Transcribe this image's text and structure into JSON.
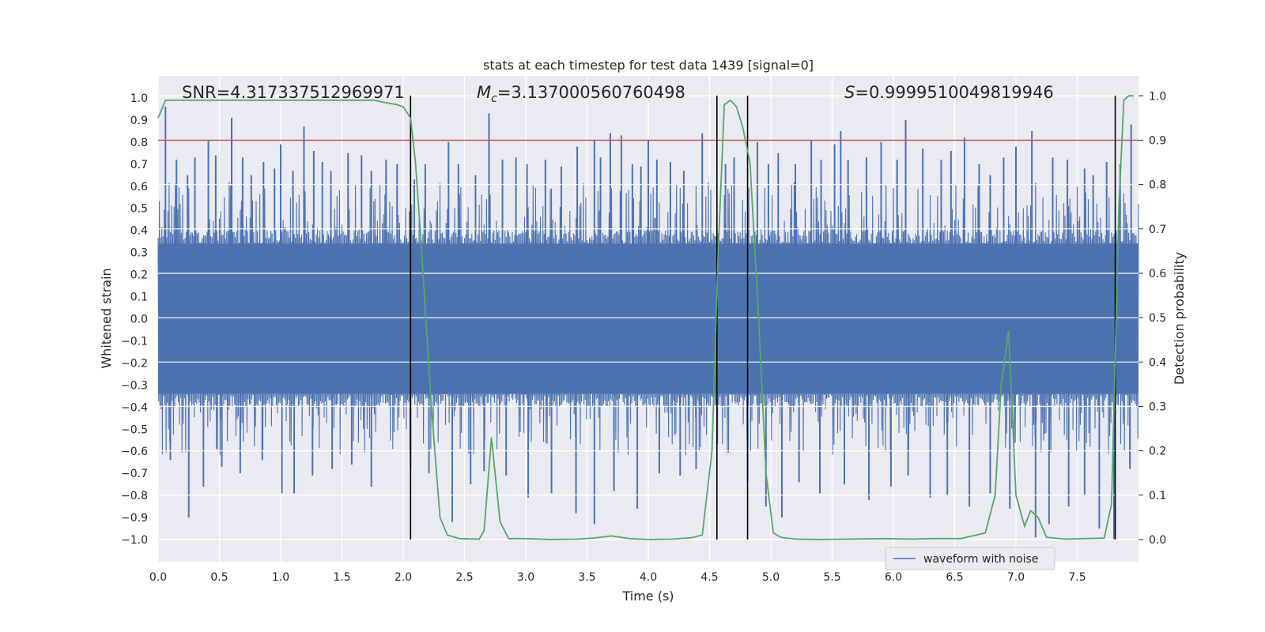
{
  "chart_data": {
    "type": "line",
    "title": "stats at each timestep for test data 1439 [signal=0]",
    "xlabel": "Time (s)",
    "ylabel": "Whitened strain",
    "y2label": "Detection probability",
    "xlim": [
      0.0,
      8.0
    ],
    "ylim": [
      -1.1,
      1.1
    ],
    "y2lim": [
      -0.05,
      1.045
    ],
    "xticks": [
      "0.0",
      "0.5",
      "1.0",
      "1.5",
      "2.0",
      "2.5",
      "3.0",
      "3.5",
      "4.0",
      "4.5",
      "5.0",
      "5.5",
      "6.0",
      "6.5",
      "7.0",
      "7.5"
    ],
    "yticks": [
      "1.0",
      "0.9",
      "0.8",
      "0.7",
      "0.6",
      "0.5",
      "0.4",
      "0.3",
      "0.2",
      "0.1",
      "0.0",
      "−0.1",
      "−0.2",
      "−0.3",
      "−0.4",
      "−0.5",
      "−0.6",
      "−0.7",
      "−0.8",
      "−0.9",
      "−1.0"
    ],
    "y2ticks": [
      "1.0",
      "0.9",
      "0.8",
      "0.7",
      "0.6",
      "0.5",
      "0.4",
      "0.3",
      "0.2",
      "0.1",
      "0.0"
    ],
    "grid": true,
    "annotations": {
      "snr": "SNR=4.317337512969971",
      "mc_symbol": "M",
      "mc_sub": "c",
      "mc_value": "=3.137000560760498",
      "s_symbol": "S",
      "s_value": "=0.9999510049819946"
    },
    "threshold": {
      "axis": "secondary",
      "value": 0.9,
      "color": "#c44e52"
    },
    "vertical_lines": [
      2.06,
      4.56,
      4.81,
      7.81
    ],
    "legend": {
      "label": "waveform with noise",
      "location": "lower-right"
    },
    "series": [
      {
        "name": "waveform with noise",
        "axis": "primary",
        "color": "#4c72b0",
        "noise_band": 0.4,
        "peaks": [
          [
            0.06,
            0.96
          ],
          [
            0.15,
            0.72
          ],
          [
            0.24,
            0.65
          ],
          [
            0.3,
            0.73
          ],
          [
            0.41,
            0.81
          ],
          [
            0.47,
            0.74
          ],
          [
            0.6,
            0.91
          ],
          [
            0.69,
            0.73
          ],
          [
            0.76,
            0.65
          ],
          [
            0.86,
            0.71
          ],
          [
            0.95,
            0.68
          ],
          [
            1.0,
            0.79
          ],
          [
            1.1,
            0.67
          ],
          [
            1.19,
            0.87
          ],
          [
            1.27,
            0.76
          ],
          [
            1.34,
            0.71
          ],
          [
            1.41,
            0.67
          ],
          [
            1.55,
            0.75
          ],
          [
            1.66,
            0.74
          ],
          [
            1.74,
            0.67
          ],
          [
            1.86,
            0.72
          ],
          [
            1.95,
            0.7
          ],
          [
            2.09,
            0.63
          ],
          [
            2.18,
            0.7
          ],
          [
            2.37,
            0.8
          ],
          [
            2.45,
            0.7
          ],
          [
            2.59,
            0.65
          ],
          [
            2.7,
            0.93
          ],
          [
            2.81,
            0.72
          ],
          [
            2.92,
            0.73
          ],
          [
            3.01,
            0.7
          ],
          [
            3.16,
            0.72
          ],
          [
            3.29,
            0.69
          ],
          [
            3.42,
            0.78
          ],
          [
            3.56,
            0.81
          ],
          [
            3.61,
            0.73
          ],
          [
            3.69,
            0.84
          ],
          [
            3.78,
            0.83
          ],
          [
            3.87,
            0.7
          ],
          [
            3.94,
            0.69
          ],
          [
            4.0,
            0.81
          ],
          [
            4.07,
            0.72
          ],
          [
            4.18,
            0.71
          ],
          [
            4.29,
            0.67
          ],
          [
            4.44,
            0.84
          ],
          [
            4.63,
            0.7
          ],
          [
            4.7,
            0.73
          ],
          [
            4.89,
            0.8
          ],
          [
            4.98,
            0.7
          ],
          [
            5.06,
            0.75
          ],
          [
            5.2,
            0.7
          ],
          [
            5.33,
            0.81
          ],
          [
            5.41,
            0.72
          ],
          [
            5.52,
            0.79
          ],
          [
            5.57,
            0.85
          ],
          [
            5.63,
            0.72
          ],
          [
            5.78,
            0.73
          ],
          [
            5.9,
            0.8
          ],
          [
            6.03,
            0.72
          ],
          [
            6.1,
            0.9
          ],
          [
            6.24,
            0.77
          ],
          [
            6.39,
            0.72
          ],
          [
            6.47,
            0.76
          ],
          [
            6.58,
            0.82
          ],
          [
            6.7,
            0.7
          ],
          [
            6.79,
            0.65
          ],
          [
            6.9,
            0.73
          ],
          [
            7.0,
            0.78
          ],
          [
            7.13,
            0.85
          ],
          [
            7.3,
            0.73
          ],
          [
            7.42,
            0.72
          ],
          [
            7.56,
            0.68
          ],
          [
            7.63,
            0.65
          ],
          [
            7.74,
            0.71
          ],
          [
            7.85,
            0.7
          ],
          [
            7.94,
            0.88
          ]
        ],
        "troughs": [
          [
            0.1,
            -0.64
          ],
          [
            0.25,
            -0.9
          ],
          [
            0.37,
            -0.76
          ],
          [
            0.52,
            -0.67
          ],
          [
            0.67,
            -0.7
          ],
          [
            0.85,
            -0.64
          ],
          [
            1.01,
            -0.79
          ],
          [
            1.11,
            -0.79
          ],
          [
            1.26,
            -0.71
          ],
          [
            1.42,
            -0.68
          ],
          [
            1.58,
            -0.66
          ],
          [
            1.74,
            -0.76
          ],
          [
            2.06,
            -0.68
          ],
          [
            2.21,
            -0.7
          ],
          [
            2.4,
            -0.92
          ],
          [
            2.55,
            -0.75
          ],
          [
            2.66,
            -0.69
          ],
          [
            2.84,
            -0.71
          ],
          [
            3.02,
            -0.81
          ],
          [
            3.21,
            -0.79
          ],
          [
            3.41,
            -0.88
          ],
          [
            3.56,
            -0.93
          ],
          [
            3.72,
            -0.78
          ],
          [
            3.91,
            -0.86
          ],
          [
            4.09,
            -0.7
          ],
          [
            4.26,
            -0.71
          ],
          [
            4.39,
            -0.68
          ],
          [
            4.81,
            -0.74
          ],
          [
            4.96,
            -0.85
          ],
          [
            5.09,
            -0.9
          ],
          [
            5.23,
            -0.74
          ],
          [
            5.4,
            -0.79
          ],
          [
            5.6,
            -0.75
          ],
          [
            5.8,
            -0.82
          ],
          [
            5.98,
            -0.76
          ],
          [
            6.12,
            -0.71
          ],
          [
            6.3,
            -0.81
          ],
          [
            6.44,
            -0.8
          ],
          [
            6.62,
            -0.85
          ],
          [
            6.79,
            -0.79
          ],
          [
            6.95,
            -0.86
          ],
          [
            7.16,
            -0.99
          ],
          [
            7.27,
            -0.93
          ],
          [
            7.43,
            -0.85
          ],
          [
            7.56,
            -0.8
          ],
          [
            7.68,
            -0.95
          ],
          [
            7.8,
            -1.0
          ],
          [
            7.93,
            -0.68
          ]
        ]
      },
      {
        "name": "detection probability",
        "axis": "secondary",
        "color": "#55a868",
        "x": [
          0.0,
          0.06,
          0.13,
          0.6,
          1.0,
          1.5,
          1.76,
          1.85,
          1.95,
          2.0,
          2.06,
          2.1,
          2.15,
          2.23,
          2.3,
          2.36,
          2.46,
          2.62,
          2.66,
          2.72,
          2.79,
          2.86,
          3.0,
          3.2,
          3.42,
          3.55,
          3.7,
          3.85,
          4.0,
          4.2,
          4.35,
          4.44,
          4.52,
          4.57,
          4.62,
          4.67,
          4.72,
          4.77,
          4.83,
          4.9,
          4.96,
          5.02,
          5.08,
          5.2,
          5.4,
          5.65,
          5.95,
          6.15,
          6.3,
          6.55,
          6.75,
          6.83,
          6.88,
          6.94,
          7.0,
          7.07,
          7.12,
          7.18,
          7.25,
          7.4,
          7.72,
          7.78,
          7.84,
          7.88,
          7.92,
          7.96
        ],
        "y": [
          0.95,
          0.99,
          0.99,
          0.99,
          0.99,
          0.99,
          0.99,
          0.985,
          0.98,
          0.975,
          0.95,
          0.85,
          0.65,
          0.3,
          0.05,
          0.01,
          0.002,
          0.001,
          0.02,
          0.23,
          0.04,
          0.002,
          0.002,
          0.0,
          0.001,
          0.003,
          0.008,
          0.002,
          0.0,
          0.001,
          0.004,
          0.01,
          0.2,
          0.65,
          0.98,
          0.99,
          0.975,
          0.93,
          0.85,
          0.5,
          0.15,
          0.015,
          0.005,
          0.001,
          0.0,
          0.001,
          0.002,
          0.001,
          0.002,
          0.002,
          0.015,
          0.1,
          0.35,
          0.47,
          0.1,
          0.03,
          0.065,
          0.05,
          0.005,
          0.001,
          0.003,
          0.08,
          0.75,
          0.99,
          1.0,
          1.0
        ]
      }
    ]
  }
}
